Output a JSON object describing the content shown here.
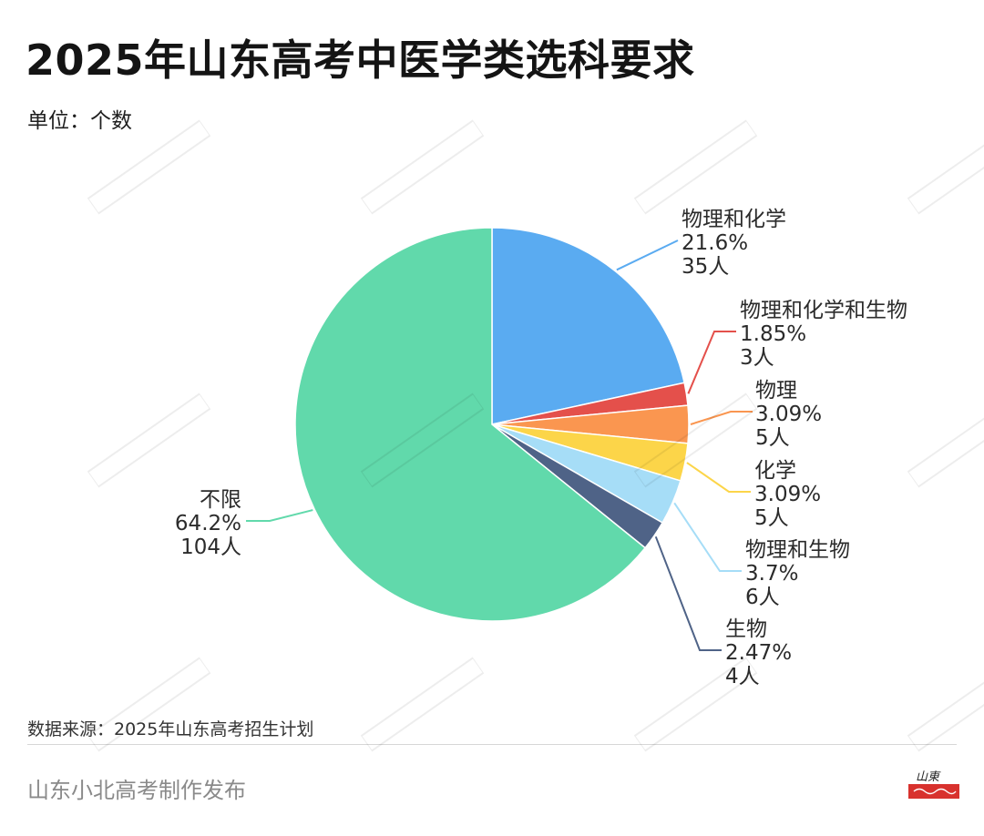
{
  "title": "2025年山东高考中医学类选科要求",
  "unit": "单位：个数",
  "source": "数据来源：2025年山东高考招生计划",
  "publisher": "山东小北高考制作发布",
  "logo": {
    "text": "山東"
  },
  "chart_data": {
    "type": "pie",
    "start_angle_deg": 0,
    "direction": "clockwise",
    "slices": [
      {
        "name": "物理和化学",
        "percent": "21.6%",
        "count": "35人",
        "value": 35,
        "color": "#5aabf1"
      },
      {
        "name": "物理和化学和生物",
        "percent": "1.85%",
        "count": "3人",
        "value": 3,
        "color": "#e4504b"
      },
      {
        "name": "物理",
        "percent": "3.09%",
        "count": "5人",
        "value": 5,
        "color": "#fa9650"
      },
      {
        "name": "化学",
        "percent": "3.09%",
        "count": "5人",
        "value": 5,
        "color": "#fcd549"
      },
      {
        "name": "物理和生物",
        "percent": "3.7%",
        "count": "6人",
        "value": 6,
        "color": "#a6ddf7"
      },
      {
        "name": "生物",
        "percent": "2.47%",
        "count": "4人",
        "value": 4,
        "color": "#4f6387"
      },
      {
        "name": "不限",
        "percent": "64.2%",
        "count": "104人",
        "value": 104,
        "color": "#61d9ab"
      }
    ]
  }
}
